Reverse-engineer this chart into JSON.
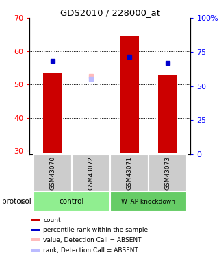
{
  "title": "GDS2010 / 228000_at",
  "samples": [
    "GSM43070",
    "GSM43072",
    "GSM43071",
    "GSM43073"
  ],
  "bar_values": [
    53.5,
    null,
    64.5,
    53.0
  ],
  "bar_bottom": 29.5,
  "blue_dot_values": [
    57.0,
    null,
    58.2,
    56.5
  ],
  "absent_rank_value": 52.5,
  "absent_rank_x": 1,
  "absent_value_x": 1,
  "absent_value_y": 52.5,
  "ylim_left": [
    29,
    70
  ],
  "yticks_left": [
    30,
    40,
    50,
    60,
    70
  ],
  "yticks_right_pos": [
    29.0,
    39.25,
    49.5,
    59.75,
    70.0
  ],
  "ytick_right_labels": [
    "0",
    "25",
    "50",
    "75",
    "100%"
  ],
  "bar_color": "#cc0000",
  "blue_dot_color": "#0000cc",
  "absent_value_color": "#ffbbbb",
  "absent_rank_color": "#bbbbff",
  "sample_box_color": "#cccccc",
  "control_color": "#90ee90",
  "knockdown_color": "#66cc66",
  "group_label_control": "control",
  "group_label_knockdown": "WTAP knockdown",
  "protocol_label": "protocol",
  "bar_width": 0.5,
  "x_positions": [
    0,
    1,
    2,
    3
  ],
  "xlim": [
    -0.6,
    3.6
  ],
  "legend_items": [
    {
      "color": "#cc0000",
      "label": "count"
    },
    {
      "color": "#0000cc",
      "label": "percentile rank within the sample"
    },
    {
      "color": "#ffbbbb",
      "label": "value, Detection Call = ABSENT"
    },
    {
      "color": "#bbbbff",
      "label": "rank, Detection Call = ABSENT"
    }
  ]
}
